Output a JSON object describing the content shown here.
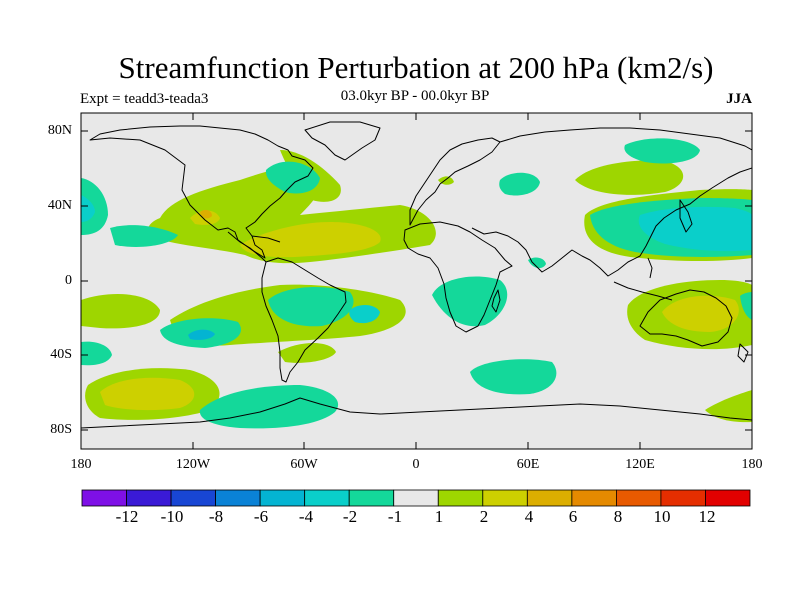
{
  "header": {
    "title": "Streamfunction Perturbation at 200 hPa (km2/s)",
    "experiment": "Expt = teadd3-teada3",
    "period": "03.0kyr BP - 00.0kyr BP",
    "season": "JJA"
  },
  "axes": {
    "lat_labels": [
      "80N",
      "40N",
      "0",
      "40S",
      "80S"
    ],
    "lon_labels": [
      "180",
      "120W",
      "60W",
      "0",
      "60E",
      "120E",
      "180"
    ]
  },
  "colorbar": {
    "labels": [
      "-12",
      "-10",
      "-8",
      "-6",
      "-4",
      "-2",
      "-1",
      "1",
      "2",
      "4",
      "6",
      "8",
      "10",
      "12"
    ],
    "colors": [
      "#7e10e6",
      "#3a1ad6",
      "#1846d4",
      "#0a82d6",
      "#04b4d2",
      "#0acfca",
      "#14d89a",
      "#e8e8e8",
      "#9ed600",
      "#cdd000",
      "#dcae00",
      "#e58a00",
      "#e85a00",
      "#e52e00",
      "#e20000"
    ]
  },
  "map_fill": {
    "neutral": "#e8e8e8",
    "levels": {
      "-4": "#04b4d2",
      "-2": "#0acfca",
      "-1": "#14d89a",
      "1": "#9ed600",
      "2": "#cdd000",
      "4": "#dcae00"
    }
  }
}
